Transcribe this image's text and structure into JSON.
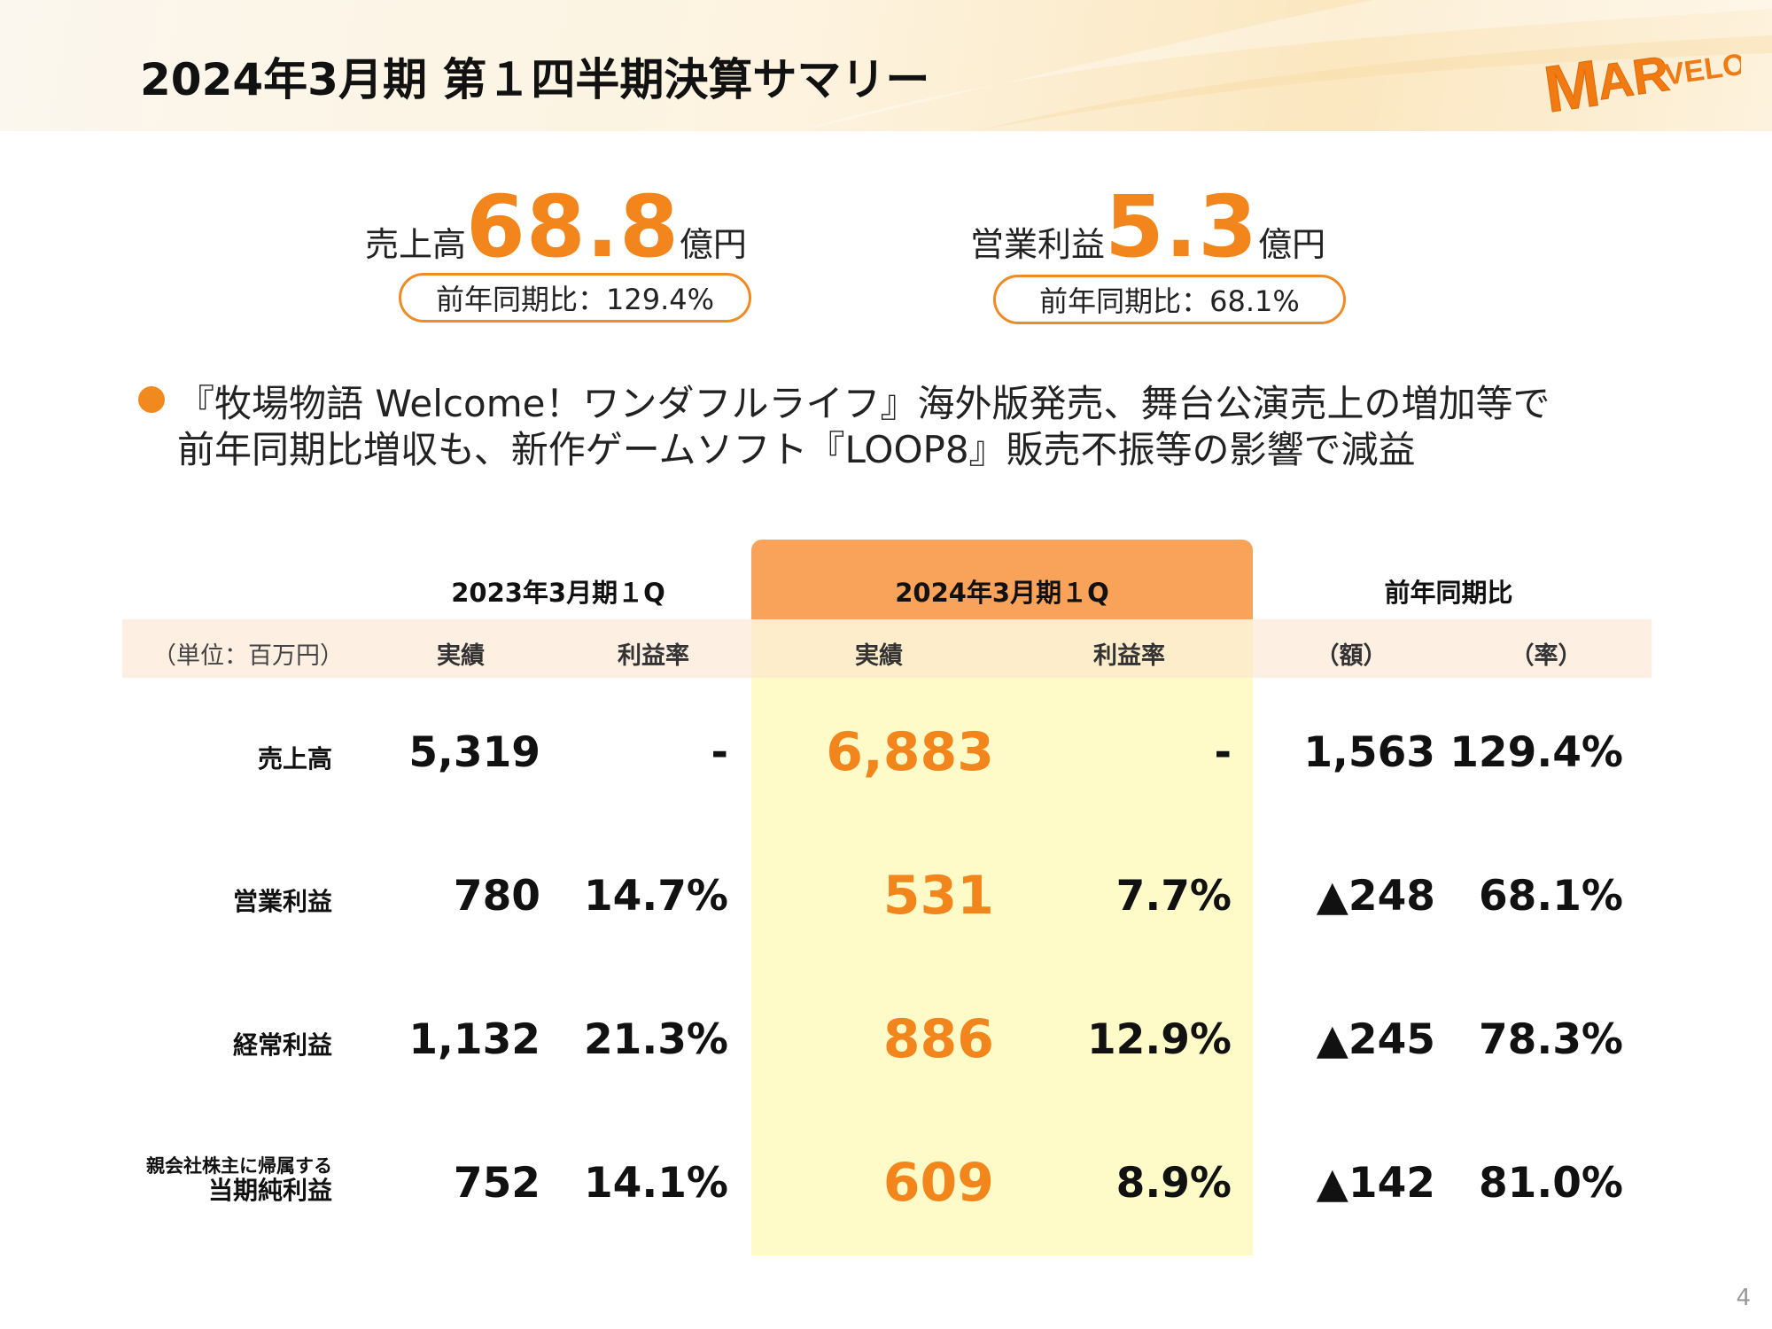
{
  "header": {
    "title": "2024年3月期 第１四半期決算サマリー",
    "logo_text": "MARVELOUS!"
  },
  "kpis": {
    "sales": {
      "label": "売上高",
      "value": "68.8",
      "unit": "億円",
      "yoy": "前年同期比：129.4%"
    },
    "operating_profit": {
      "label": "営業利益",
      "value": "5.3",
      "unit": "億円",
      "yoy": "前年同期比：68.1%"
    }
  },
  "bullet": {
    "line1": "『牧場物語 Welcome！ワンダフルライフ』海外版発売、舞台公演売上の増加等で",
    "line2": "前年同期比増収も、新作ゲームソフト『LOOP8』販売不振等の影響で減益"
  },
  "table": {
    "year_headers": {
      "prev": "2023年3月期１Q",
      "curr": "2024年3月期１Q",
      "yoy": "前年同期比"
    },
    "subheaders": {
      "unit": "（単位：百万円）",
      "prev_actual": "実績",
      "prev_margin": "利益率",
      "curr_actual": "実績",
      "curr_margin": "利益率",
      "yoy_amount": "（額）",
      "yoy_rate": "（率）"
    },
    "rows": [
      {
        "label": "売上高",
        "prev_actual": "5,319",
        "prev_margin": "-",
        "curr_actual": "6,883",
        "curr_margin": "-",
        "yoy_amount": "1,563",
        "yoy_rate": "129.4%"
      },
      {
        "label": "営業利益",
        "prev_actual": "780",
        "prev_margin": "14.7%",
        "curr_actual": "531",
        "curr_margin": "7.7%",
        "yoy_amount": "▲248",
        "yoy_rate": "68.1%"
      },
      {
        "label": "経常利益",
        "prev_actual": "1,132",
        "prev_margin": "21.3%",
        "curr_actual": "886",
        "curr_margin": "12.9%",
        "yoy_amount": "▲245",
        "yoy_rate": "78.3%"
      },
      {
        "label_top": "親会社株主に帰属する",
        "label": "当期純利益",
        "prev_actual": "752",
        "prev_margin": "14.1%",
        "curr_actual": "609",
        "curr_margin": "8.9%",
        "yoy_amount": "▲142",
        "yoy_rate": "81.0%"
      }
    ]
  },
  "colors": {
    "accent_orange": "#f2861c",
    "highlight_tab": "#f9a25a",
    "highlight_column": "#fefbc8",
    "subheader_band": "#fde2cc"
  },
  "page_number": "4"
}
